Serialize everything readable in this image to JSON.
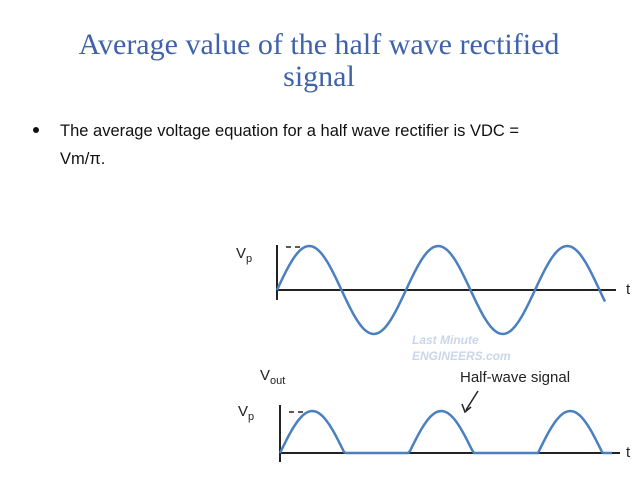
{
  "title": {
    "lines": [
      "Average value of the half wave rectified",
      "signal"
    ]
  },
  "bullet": {
    "lines": [
      "The average voltage equation for a half wave rectifier is VDC =",
      "Vm/π."
    ]
  },
  "diagram": {
    "input": {
      "peak_label": {
        "main": "V",
        "sub": "p"
      },
      "time_label": "t"
    },
    "output": {
      "axis_label": {
        "main": "V",
        "sub": "out"
      },
      "peak_label": {
        "main": "V",
        "sub": "p"
      },
      "time_label": "t",
      "annotation": "Half-wave signal"
    },
    "watermark": {
      "lines": [
        "Last Minute",
        "ENGINEERS.com"
      ]
    }
  }
}
